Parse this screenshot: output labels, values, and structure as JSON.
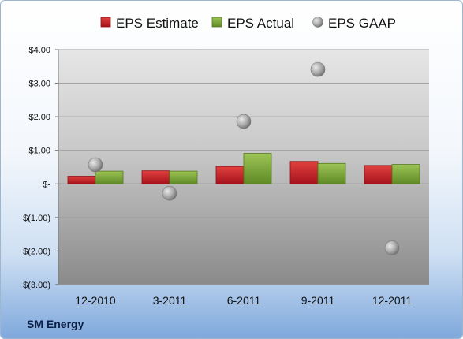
{
  "chart_data": {
    "type": "bar",
    "title": "",
    "xlabel": "",
    "ylabel": "",
    "categories": [
      "12-2010",
      "3-2011",
      "6-2011",
      "9-2011",
      "12-2011"
    ],
    "series": [
      {
        "name": "EPS Estimate",
        "type": "bar",
        "color": "#c8202b",
        "values": [
          0.23,
          0.39,
          0.52,
          0.67,
          0.55
        ]
      },
      {
        "name": "EPS Actual",
        "type": "bar",
        "color": "#7ea33a",
        "values": [
          0.38,
          0.38,
          0.91,
          0.61,
          0.58
        ]
      },
      {
        "name": "EPS GAAP",
        "type": "scatter",
        "color": "#a6a6a6",
        "values": [
          0.57,
          -0.28,
          1.86,
          3.41,
          -1.91
        ]
      }
    ],
    "ylim": [
      -3,
      4
    ],
    "yticks": [
      4,
      3,
      2,
      1,
      0,
      -1,
      -2,
      -3
    ],
    "ytick_labels": [
      "$4.00",
      "$3.00",
      "$2.00",
      "$1.00",
      "$-",
      "$(1.00)",
      "$(2.00)",
      "$(3.00)"
    ],
    "legend_position": "top",
    "grid": true
  },
  "footer": {
    "company": "SM Energy"
  }
}
